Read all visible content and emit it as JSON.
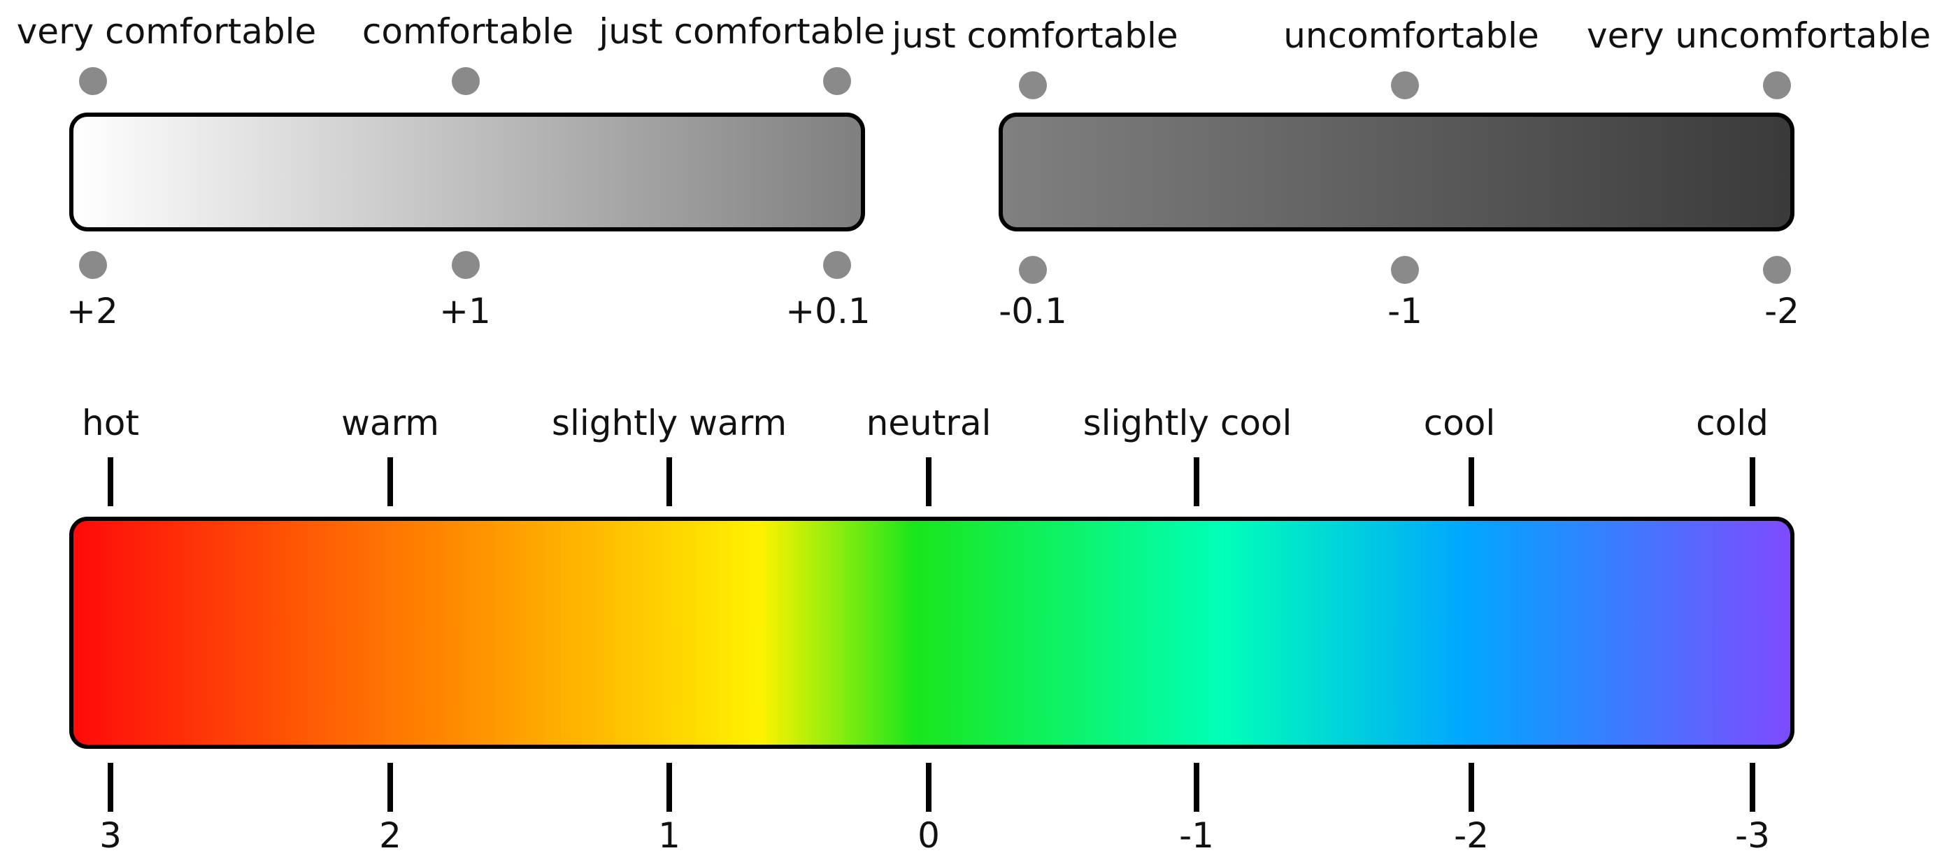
{
  "comfort_scale": {
    "positive": {
      "labels": [
        "very comfortable",
        "comfortable",
        "just comfortable"
      ],
      "values": [
        "+2",
        "+1",
        "+0.1"
      ],
      "gradient": [
        "#ffffff",
        "#7f7f7f"
      ]
    },
    "negative": {
      "labels": [
        "just comfortable",
        "uncomfortable",
        "very uncomfortable"
      ],
      "values": [
        "-0.1",
        "-1",
        "-2"
      ],
      "gradient": [
        "#808080",
        "#3a3a3a"
      ]
    },
    "marker_color": "#8a8a8a"
  },
  "thermal_scale": {
    "labels": [
      "hot",
      "warm",
      "slightly warm",
      "neutral",
      "slightly cool",
      "cool",
      "cold"
    ],
    "values": [
      "3",
      "2",
      "1",
      "0",
      "-1",
      "-2",
      "-3"
    ],
    "gradient": [
      "#ff0a0a",
      "#ff8a00",
      "#fff200",
      "#19e61c",
      "#00ffb8",
      "#00a7ff",
      "#7e4bff"
    ]
  }
}
